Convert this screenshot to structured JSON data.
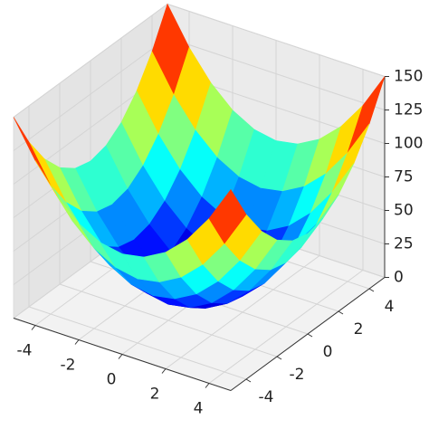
{
  "chart_data": {
    "type": "surface3d",
    "colormap": "jet",
    "x": [
      -5,
      -4,
      -3,
      -2,
      -1,
      0,
      1,
      2,
      3,
      4,
      5
    ],
    "y": [
      -5,
      -4,
      -3,
      -2,
      -1,
      0,
      1,
      2,
      3,
      4,
      5
    ],
    "z": [
      [
        150,
        123,
        102,
        87,
        78,
        75,
        78,
        87,
        102,
        123,
        150
      ],
      [
        123,
        96,
        75,
        60,
        51,
        48,
        51,
        60,
        75,
        96,
        123
      ],
      [
        102,
        75,
        54,
        39,
        30,
        27,
        30,
        39,
        54,
        75,
        102
      ],
      [
        87,
        60,
        39,
        24,
        15,
        12,
        15,
        24,
        39,
        60,
        87
      ],
      [
        78,
        51,
        30,
        15,
        6,
        3,
        6,
        15,
        30,
        51,
        78
      ],
      [
        75,
        48,
        27,
        12,
        3,
        0,
        3,
        12,
        27,
        48,
        75
      ],
      [
        78,
        51,
        30,
        15,
        6,
        3,
        6,
        15,
        30,
        51,
        78
      ],
      [
        87,
        60,
        39,
        24,
        15,
        12,
        15,
        24,
        39,
        60,
        87
      ],
      [
        102,
        75,
        54,
        39,
        30,
        27,
        30,
        39,
        54,
        75,
        102
      ],
      [
        123,
        96,
        75,
        60,
        51,
        48,
        51,
        60,
        75,
        96,
        123
      ],
      [
        150,
        123,
        102,
        87,
        78,
        75,
        78,
        87,
        102,
        123,
        150
      ]
    ],
    "xlim": [
      -5,
      5
    ],
    "ylim": [
      -5,
      5
    ],
    "zlim": [
      0,
      150
    ],
    "xticks": [
      -4,
      -2,
      0,
      2,
      4
    ],
    "yticks": [
      -4,
      -2,
      0,
      2,
      4
    ],
    "zticks": [
      0,
      25,
      50,
      75,
      100,
      125,
      150
    ],
    "grid": true
  }
}
